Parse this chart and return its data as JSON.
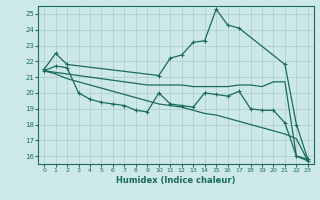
{
  "xlabel": "Humidex (Indice chaleur)",
  "ylabel": "",
  "bg_color": "#cde8e8",
  "line_color": "#1a6b5a",
  "grid_color": "#aacccc",
  "ylim": [
    15.5,
    25.5
  ],
  "xlim": [
    -0.5,
    23.5
  ],
  "yticks": [
    16,
    17,
    18,
    19,
    20,
    21,
    22,
    23,
    24,
    25
  ],
  "xticks": [
    0,
    1,
    2,
    3,
    4,
    5,
    6,
    7,
    8,
    9,
    10,
    11,
    12,
    13,
    14,
    15,
    16,
    17,
    18,
    19,
    20,
    21,
    22,
    23
  ],
  "lines": [
    {
      "x": [
        0,
        1,
        2,
        10,
        11,
        12,
        13,
        14,
        15,
        16,
        17,
        21,
        22,
        23
      ],
      "y": [
        21.5,
        22.5,
        21.8,
        21.1,
        22.2,
        22.4,
        23.2,
        23.3,
        25.3,
        24.3,
        24.1,
        21.8,
        18.0,
        15.8
      ],
      "marker": true,
      "lw": 0.9
    },
    {
      "x": [
        0,
        1,
        2,
        3,
        4,
        5,
        6,
        7,
        8,
        9,
        10,
        11,
        12,
        13,
        14,
        15,
        16,
        17,
        18,
        19,
        20,
        21,
        22,
        23
      ],
      "y": [
        21.4,
        21.3,
        21.2,
        21.1,
        21.0,
        20.9,
        20.8,
        20.7,
        20.6,
        20.5,
        20.5,
        20.5,
        20.5,
        20.4,
        20.4,
        20.4,
        20.4,
        20.5,
        20.5,
        20.4,
        20.7,
        20.7,
        16.0,
        15.8
      ],
      "marker": false,
      "lw": 0.9
    },
    {
      "x": [
        0,
        1,
        2,
        3,
        4,
        5,
        6,
        7,
        8,
        9,
        10,
        11,
        12,
        13,
        14,
        15,
        16,
        17,
        18,
        19,
        20,
        21,
        22,
        23
      ],
      "y": [
        21.4,
        21.2,
        20.9,
        20.7,
        20.5,
        20.3,
        20.1,
        19.9,
        19.7,
        19.5,
        19.3,
        19.2,
        19.1,
        18.9,
        18.7,
        18.6,
        18.4,
        18.2,
        18.0,
        17.8,
        17.6,
        17.4,
        17.1,
        15.7
      ],
      "marker": false,
      "lw": 0.9
    },
    {
      "x": [
        0,
        1,
        2,
        3,
        4,
        5,
        6,
        7,
        8,
        9,
        10,
        11,
        12,
        13,
        14,
        15,
        16,
        17,
        18,
        19,
        20,
        21,
        22,
        23
      ],
      "y": [
        21.4,
        21.7,
        21.6,
        20.0,
        19.6,
        19.4,
        19.3,
        19.2,
        18.9,
        18.8,
        20.0,
        19.3,
        19.2,
        19.1,
        20.0,
        19.9,
        19.8,
        20.1,
        19.0,
        18.9,
        18.9,
        18.1,
        16.0,
        15.7
      ],
      "marker": true,
      "lw": 0.9
    }
  ]
}
